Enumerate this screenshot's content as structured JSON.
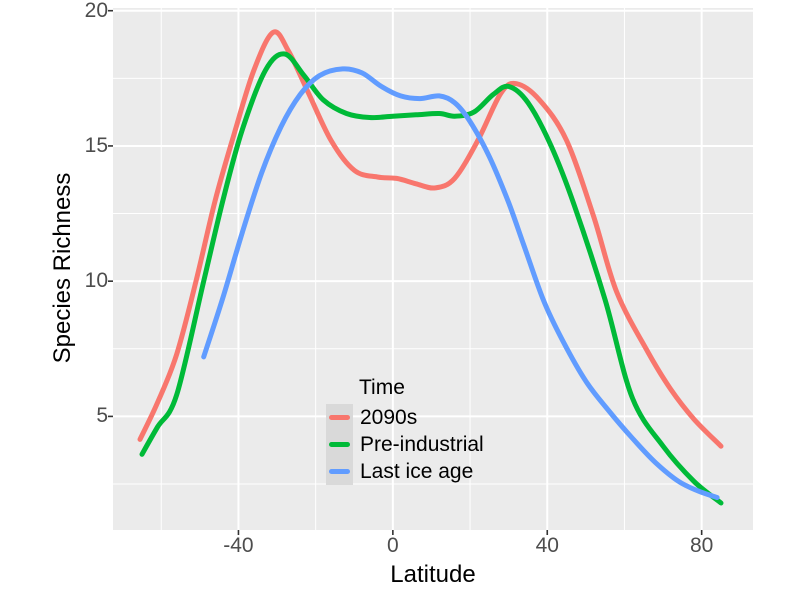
{
  "chart_data": {
    "type": "line",
    "xlabel": "Latitude",
    "ylabel": "Species Richness",
    "xlim": [
      -72.5,
      93.3
    ],
    "ylim": [
      0.8,
      20.1
    ],
    "x_ticks": [
      {
        "value": -40,
        "label": "-40"
      },
      {
        "value": 0,
        "label": "0"
      },
      {
        "value": 40,
        "label": "40"
      },
      {
        "value": 80,
        "label": "80"
      }
    ],
    "y_ticks": [
      {
        "value": 5,
        "label": "5"
      },
      {
        "value": 10,
        "label": "10"
      },
      {
        "value": 15,
        "label": "15"
      },
      {
        "value": 20,
        "label": "20"
      }
    ],
    "x_minor_ticks": [
      -60,
      -20,
      20,
      60
    ],
    "y_minor_ticks": [
      2.5,
      7.5,
      12.5,
      17.5
    ],
    "grid": true,
    "panel_bg": "#EBEBEB",
    "grid_color": "#FFFFFF",
    "axis_text_color": "#4d4d4d",
    "tick_mark_color": "#333333",
    "legend": {
      "title": "Time",
      "position": "inside-bottom-center",
      "key_bg": "#D9D9D9"
    },
    "series": [
      {
        "name": "2090s",
        "color": "#F8766D",
        "points": [
          [
            -65.5,
            4.15
          ],
          [
            -61,
            5.5
          ],
          [
            -56,
            7.3
          ],
          [
            -51,
            10
          ],
          [
            -46,
            13
          ],
          [
            -41,
            15.5
          ],
          [
            -36,
            17.8
          ],
          [
            -31,
            19.2
          ],
          [
            -27,
            18.5
          ],
          [
            -22,
            17
          ],
          [
            -16,
            15.2
          ],
          [
            -10,
            14.1
          ],
          [
            -4,
            13.85
          ],
          [
            1,
            13.8
          ],
          [
            6,
            13.6
          ],
          [
            11,
            13.45
          ],
          [
            16,
            13.8
          ],
          [
            22,
            15.2
          ],
          [
            28,
            16.95
          ],
          [
            32,
            17.3
          ],
          [
            38,
            16.7
          ],
          [
            45,
            15.2
          ],
          [
            52,
            12.4
          ],
          [
            58,
            9.6
          ],
          [
            66,
            7.4
          ],
          [
            72,
            6
          ],
          [
            78,
            4.9
          ],
          [
            85,
            3.9
          ]
        ]
      },
      {
        "name": "Pre-industrial",
        "color": "#00BA38",
        "points": [
          [
            -65,
            3.6
          ],
          [
            -61,
            4.6
          ],
          [
            -56,
            5.8
          ],
          [
            -49,
            10
          ],
          [
            -44,
            13
          ],
          [
            -39,
            15.6
          ],
          [
            -33,
            17.8
          ],
          [
            -28,
            18.4
          ],
          [
            -23,
            17.6
          ],
          [
            -18,
            16.7
          ],
          [
            -12,
            16.2
          ],
          [
            -6,
            16.05
          ],
          [
            0,
            16.1
          ],
          [
            6,
            16.15
          ],
          [
            12,
            16.2
          ],
          [
            16,
            16.1
          ],
          [
            21,
            16.25
          ],
          [
            26,
            16.9
          ],
          [
            30,
            17.2
          ],
          [
            35,
            16.6
          ],
          [
            41,
            15
          ],
          [
            47,
            12.8
          ],
          [
            55,
            9.3
          ],
          [
            62,
            5.7
          ],
          [
            70,
            3.9
          ],
          [
            78,
            2.6
          ],
          [
            85,
            1.8
          ]
        ]
      },
      {
        "name": "Last ice age",
        "color": "#619CFF",
        "points": [
          [
            -49,
            7.2
          ],
          [
            -44,
            9.4
          ],
          [
            -39,
            11.8
          ],
          [
            -34,
            14
          ],
          [
            -29,
            15.7
          ],
          [
            -24,
            16.9
          ],
          [
            -19,
            17.6
          ],
          [
            -13,
            17.85
          ],
          [
            -8,
            17.7
          ],
          [
            -3,
            17.2
          ],
          [
            2,
            16.85
          ],
          [
            7,
            16.75
          ],
          [
            12,
            16.85
          ],
          [
            16,
            16.6
          ],
          [
            20,
            15.9
          ],
          [
            25,
            14.6
          ],
          [
            30,
            12.9
          ],
          [
            34,
            11.3
          ],
          [
            39,
            9.3
          ],
          [
            44,
            7.8
          ],
          [
            50,
            6.3
          ],
          [
            56,
            5.2
          ],
          [
            62,
            4.2
          ],
          [
            68,
            3.3
          ],
          [
            74,
            2.6
          ],
          [
            79,
            2.25
          ],
          [
            84,
            2
          ]
        ]
      }
    ]
  }
}
